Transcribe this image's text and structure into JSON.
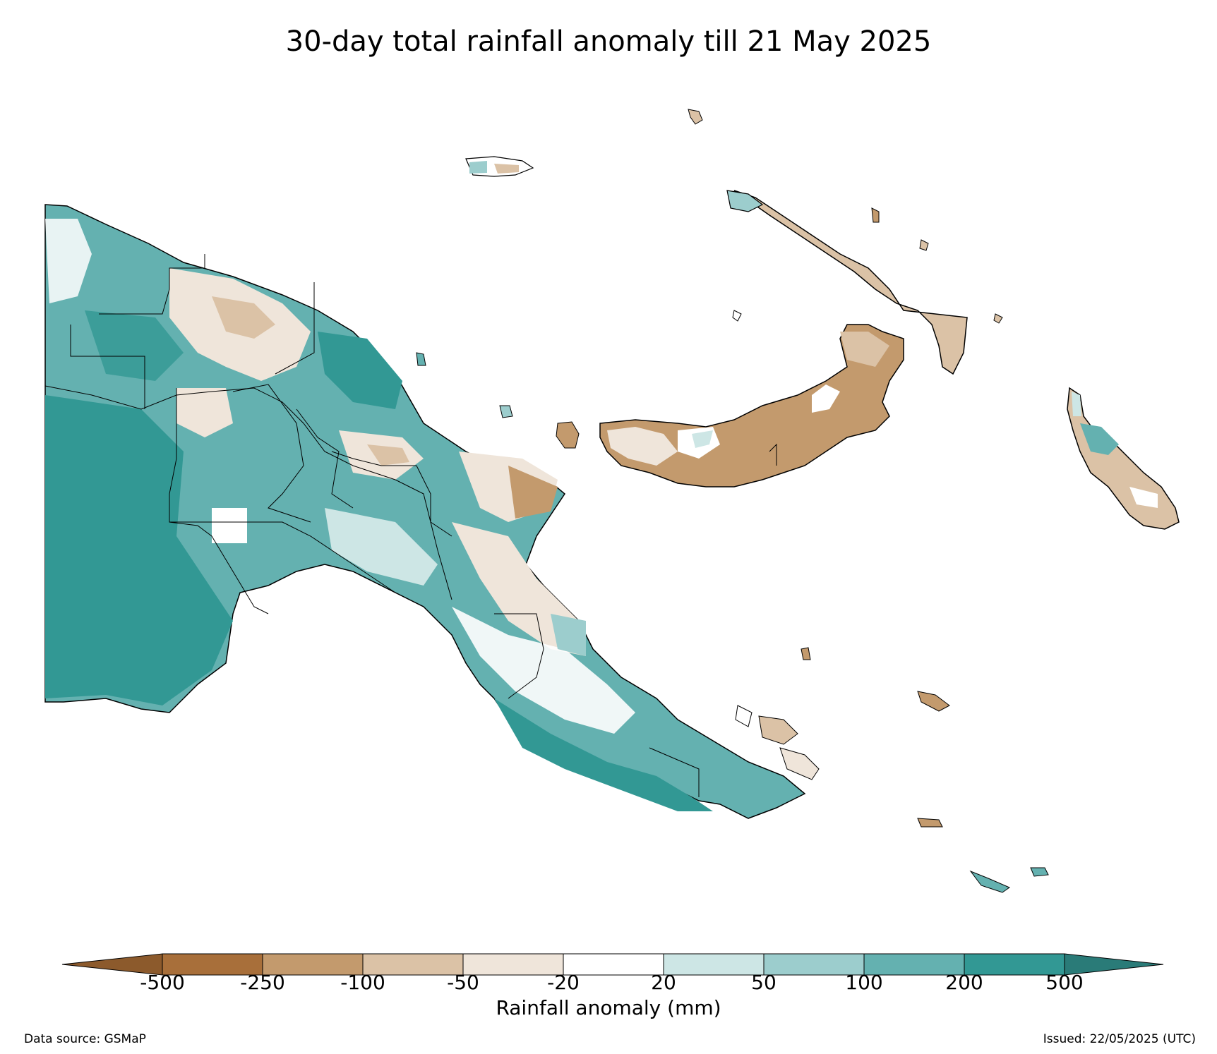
{
  "title": "30-day total rainfall anomaly till 21 May 2025",
  "colorbar": {
    "label": "Rainfall anomaly (mm)",
    "ticks": [
      "-500",
      "-250",
      "-100",
      "-50",
      "-20",
      "20",
      "50",
      "100",
      "200",
      "500"
    ],
    "colors": [
      "#a86f3a",
      "#c39a6d",
      "#dbc2a6",
      "#efe5da",
      "#ffffff",
      "#cde6e5",
      "#9ccdcd",
      "#64b1b0",
      "#329894"
    ],
    "extend_low_color": "#8c5a2c",
    "extend_high_color": "#2a7b78"
  },
  "footer": {
    "source": "Data source: GSMaP",
    "issued": "Issued: 22/05/2025 (UTC)"
  }
}
